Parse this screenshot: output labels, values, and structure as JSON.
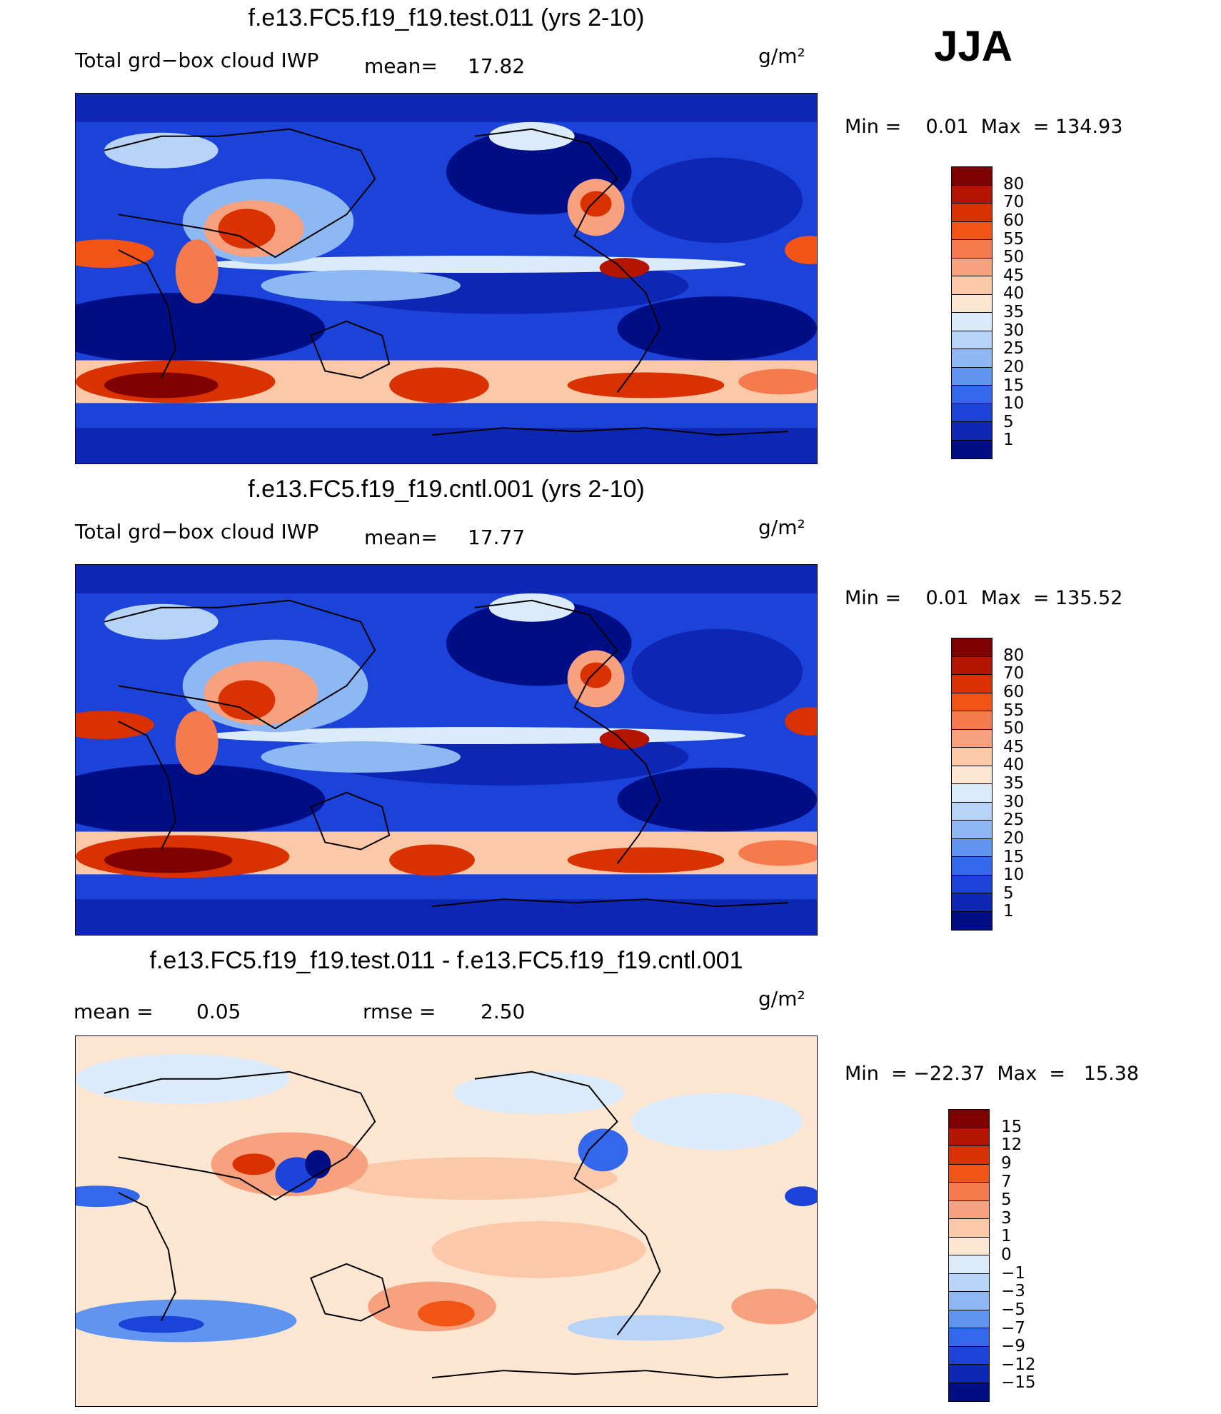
{
  "season": "JJA",
  "panels": [
    {
      "title": "f.e13.FC5.f19_f19.test.011 (yrs 2-10)",
      "variable": "Total grd−box cloud IWP",
      "stat_label": "mean=",
      "stat_value": "17.82",
      "units": "g/m²",
      "min_max": "Min =    0.01  Max  = 134.93",
      "colorbar_labels": [
        "80",
        "70",
        "60",
        "55",
        "50",
        "45",
        "40",
        "35",
        "30",
        "25",
        "20",
        "15",
        "10",
        "5",
        "1"
      ],
      "field_colors": [
        "#7f0000",
        "#b31500",
        "#d93100",
        "#f25416",
        "#f57b4e",
        "#f7a17e",
        "#fbc9a8",
        "#fde7d3",
        "#dcebfa",
        "#b7d4f7",
        "#8db8f4",
        "#5f95f0",
        "#3468ec",
        "#1b43d9",
        "#0d27b4",
        "#000e86"
      ]
    },
    {
      "title": "f.e13.FC5.f19_f19.cntl.001 (yrs 2-10)",
      "variable": "Total grd−box cloud IWP",
      "stat_label": "mean=",
      "stat_value": "17.77",
      "units": "g/m²",
      "min_max": "Min =    0.01  Max  = 135.52",
      "colorbar_labels": [
        "80",
        "70",
        "60",
        "55",
        "50",
        "45",
        "40",
        "35",
        "30",
        "25",
        "20",
        "15",
        "10",
        "5",
        "1"
      ],
      "field_colors": [
        "#7f0000",
        "#b31500",
        "#d93100",
        "#f25416",
        "#f57b4e",
        "#f7a17e",
        "#fbc9a8",
        "#fde7d3",
        "#dcebfa",
        "#b7d4f7",
        "#8db8f4",
        "#5f95f0",
        "#3468ec",
        "#1b43d9",
        "#0d27b4",
        "#000e86"
      ]
    },
    {
      "title": "f.e13.FC5.f19_f19.test.011 - f.e13.FC5.f19_f19.cntl.001",
      "stat1_label": "mean  =",
      "stat1_value": "0.05",
      "stat2_label": "rmse  =",
      "stat2_value": "2.50",
      "units": "g/m²",
      "min_max": "Min  = −22.37  Max  =   15.38",
      "colorbar_labels": [
        "15",
        "12",
        "9",
        "7",
        "5",
        "3",
        "1",
        "0",
        "−1",
        "−3",
        "−5",
        "−7",
        "−9",
        "−12",
        "−15"
      ],
      "field_colors": [
        "#7f0000",
        "#b31500",
        "#d93100",
        "#f25416",
        "#f57b4e",
        "#f7a17e",
        "#fbc9a8",
        "#fde7d3",
        "#dcebfa",
        "#b7d4f7",
        "#8db8f4",
        "#5f95f0",
        "#3468ec",
        "#1b43d9",
        "#0d27b4",
        "#000e86"
      ]
    }
  ]
}
